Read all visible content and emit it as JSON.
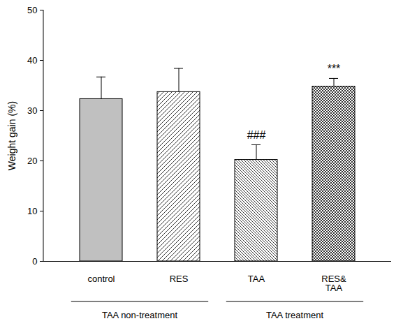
{
  "chart_data": {
    "type": "bar",
    "y_label": "Weight gain (%)",
    "categories": [
      "control",
      "RES",
      "TAA",
      "RES&\nTAA"
    ],
    "values": [
      32.3,
      33.7,
      20.2,
      34.8
    ],
    "error_bars": [
      4.4,
      4.7,
      3.0,
      1.6
    ],
    "colors": [
      "#c0c0c0",
      "#333333",
      "#333333",
      "#333333"
    ],
    "ylim": [
      0,
      50
    ],
    "yticks": [
      0,
      10,
      20,
      30,
      40,
      50
    ],
    "grid": false,
    "annotations": [
      {
        "category": "TAA",
        "text": "###"
      },
      {
        "category": "RES&\nTAA",
        "text": "***"
      }
    ],
    "groups": [
      {
        "label": "TAA non-treatment",
        "categories": [
          "control",
          "RES"
        ]
      },
      {
        "label": "TAA treatment",
        "categories": [
          "TAA",
          "RES&\nTAA"
        ]
      }
    ]
  }
}
